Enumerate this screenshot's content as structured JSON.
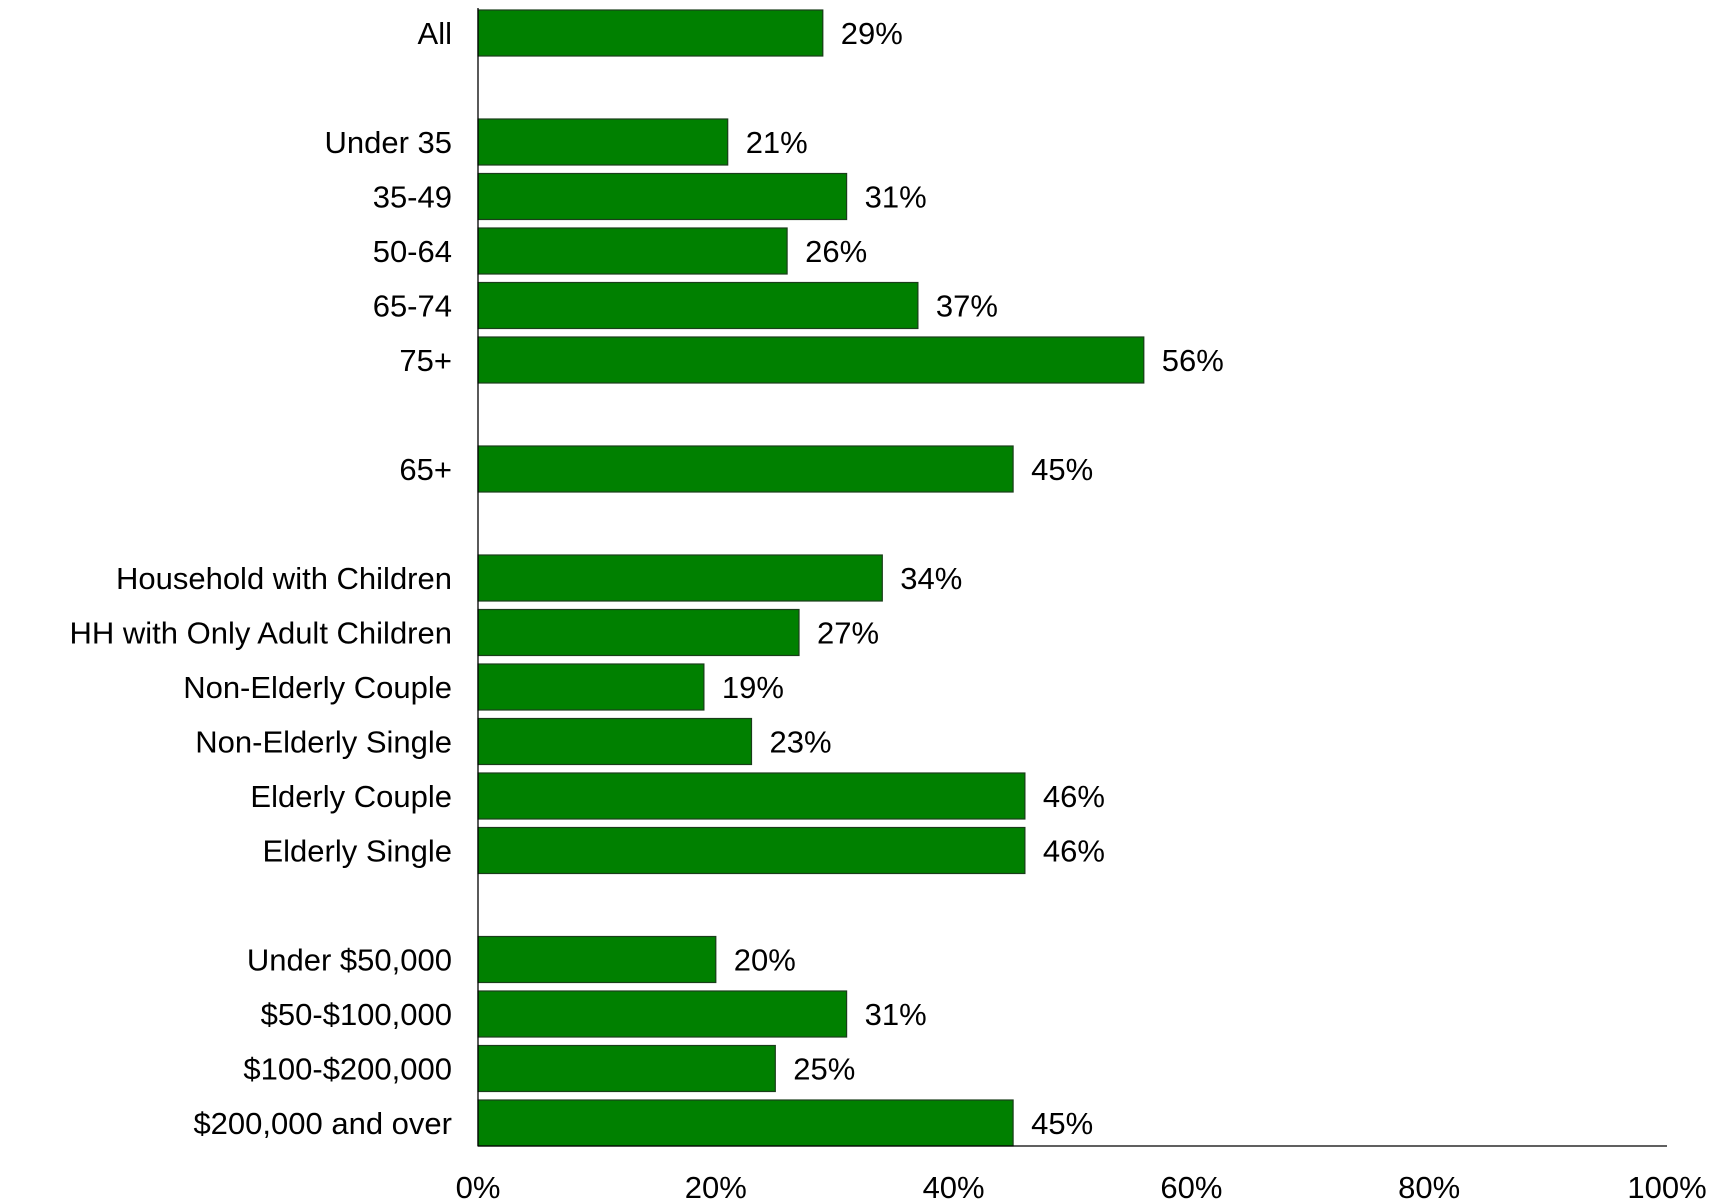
{
  "chart_data": {
    "type": "bar",
    "orientation": "horizontal",
    "categories": [
      "All",
      "Under 35",
      "35-49",
      "50-64",
      "65-74",
      "75+",
      "65+",
      "Household with Children",
      "HH with Only Adult Children",
      "Non-Elderly Couple",
      "Non-Elderly Single",
      "Elderly Couple",
      "Elderly Single",
      "Under $50,000",
      "$50-$100,000",
      "$100-$200,000",
      "$200,000 and over"
    ],
    "values": [
      29,
      21,
      31,
      26,
      37,
      56,
      45,
      34,
      27,
      19,
      23,
      46,
      46,
      20,
      31,
      25,
      45
    ],
    "data_labels": [
      "29%",
      "21%",
      "31%",
      "26%",
      "37%",
      "56%",
      "45%",
      "34%",
      "27%",
      "19%",
      "23%",
      "46%",
      "46%",
      "20%",
      "31%",
      "25%",
      "45%"
    ],
    "groups": [
      [
        0
      ],
      [
        1,
        2,
        3,
        4,
        5
      ],
      [
        6
      ],
      [
        7,
        8,
        9,
        10,
        11,
        12
      ],
      [
        13,
        14,
        15,
        16
      ]
    ],
    "xlim": [
      0,
      100
    ],
    "xticks": [
      0,
      20,
      40,
      60,
      80,
      100
    ],
    "xtick_labels": [
      "0%",
      "20%",
      "40%",
      "60%",
      "80%",
      "100%"
    ],
    "title": "",
    "xlabel": "",
    "ylabel": "",
    "grid": false,
    "legend": "none",
    "colors": {
      "bar": "#008000",
      "bar_edge": "#1a3d1a",
      "axis": "#000000"
    }
  }
}
